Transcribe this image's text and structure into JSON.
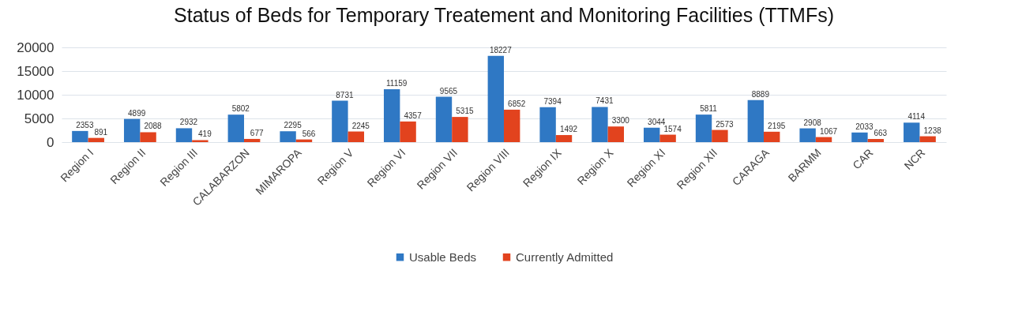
{
  "chart_data": {
    "type": "bar",
    "title": "Status of Beds for Temporary Treatement and Monitoring Facilities (TTMFs)",
    "categories": [
      "Region I",
      "Region II",
      "Region III",
      "CALABARZON",
      "MIMAROPA",
      "Region V",
      "Region VI",
      "Region VII",
      "Region VIII",
      "Region IX",
      "Region X",
      "Region XI",
      "Region XII",
      "CARAGA",
      "BARMM",
      "CAR",
      "NCR"
    ],
    "series": [
      {
        "name": "Usable Beds",
        "color": "#2f78c4",
        "values": [
          2353,
          4899,
          2932,
          5802,
          2295,
          8731,
          11159,
          9565,
          18227,
          7394,
          7431,
          3044,
          5811,
          8889,
          2908,
          2033,
          4114
        ]
      },
      {
        "name": "Currently Admitted",
        "color": "#e2431e",
        "values": [
          891,
          2088,
          419,
          677,
          566,
          2245,
          4357,
          5315,
          6852,
          1492,
          3300,
          1574,
          2573,
          2195,
          1067,
          663,
          1238
        ]
      }
    ],
    "ylim": [
      0,
      20000
    ],
    "yticks": [
      0,
      5000,
      10000,
      15000,
      20000
    ],
    "grid": "y",
    "legend": "bottom",
    "data_labels": true
  }
}
